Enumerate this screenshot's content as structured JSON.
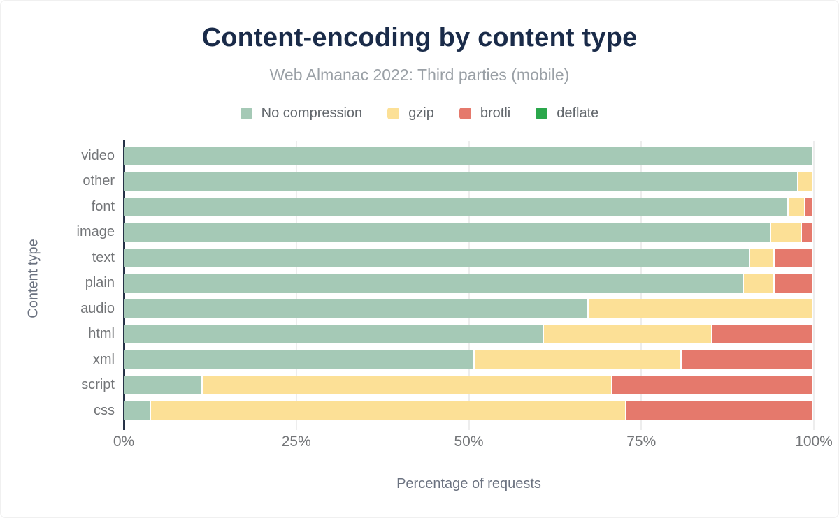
{
  "chart_data": {
    "type": "bar",
    "orientation": "horizontal",
    "stacked": true,
    "title": "Content-encoding by content type",
    "subtitle": "Web Almanac 2022: Third parties (mobile)",
    "xlabel": "Percentage of requests",
    "ylabel": "Content type",
    "xlim": [
      0,
      100
    ],
    "xticks": [
      "0%",
      "25%",
      "50%",
      "75%",
      "100%"
    ],
    "xtick_values": [
      0,
      25,
      50,
      75,
      100
    ],
    "grid": "vertical-gridlines at 25/50/75/100",
    "legend_position": "top",
    "categories": [
      "video",
      "other",
      "font",
      "image",
      "text",
      "plain",
      "audio",
      "html",
      "xml",
      "script",
      "css"
    ],
    "series": [
      {
        "name": "No compression",
        "color": "#a5c9b6",
        "values": [
          100,
          98,
          96.5,
          94,
          91,
          90,
          67.5,
          61,
          51,
          11.5,
          4
        ]
      },
      {
        "name": "gzip",
        "color": "#fce096",
        "values": [
          0,
          2,
          2.5,
          4.5,
          3.5,
          4.5,
          32.5,
          24.5,
          30,
          59.5,
          69
        ]
      },
      {
        "name": "brotli",
        "color": "#e5796c",
        "values": [
          0,
          0,
          1,
          1.5,
          5.5,
          5.5,
          0,
          14.5,
          19,
          29,
          27
        ]
      },
      {
        "name": "deflate",
        "color": "#2aa74b",
        "values": [
          0,
          0,
          0,
          0,
          0,
          0,
          0,
          0,
          0,
          0,
          0
        ]
      }
    ],
    "colors": {
      "title": "#1a2b49",
      "subtitle_text": "#9aa0a6",
      "axis_line": "#263247",
      "gridline": "#ededed",
      "tick_text": "#737578"
    }
  }
}
